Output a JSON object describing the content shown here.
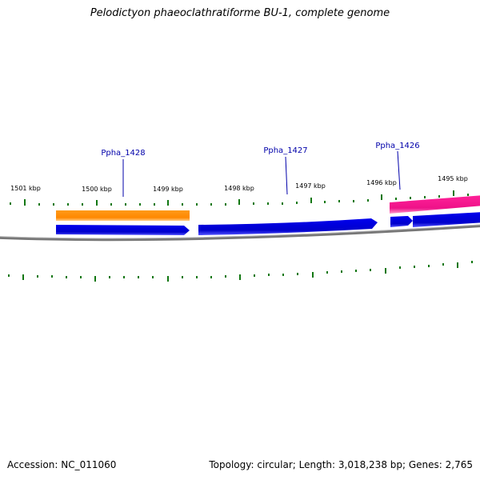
{
  "title": "Pelodictyon phaeoclathratiforme BU-1, complete genome",
  "footer": {
    "accession_label": "Accession: NC_011060",
    "stats_label": "Topology: circular; Length: 3,018,238 bp; Genes: 2,765"
  },
  "kbp_ticks": [
    "1501 kbp",
    "1500 kbp",
    "1499 kbp",
    "1498 kbp",
    "1497 kbp",
    "1496 kbp",
    "1495 kbp"
  ],
  "gene_labels": [
    "Ppha_1428",
    "Ppha_1427",
    "Ppha_1426"
  ],
  "colors": {
    "gene_blue": "#0000dd",
    "gene_orange": "#ff8800",
    "gene_pink": "#ee1188",
    "backbone": "#808080",
    "tick": "#117711",
    "label": "#0000aa"
  }
}
